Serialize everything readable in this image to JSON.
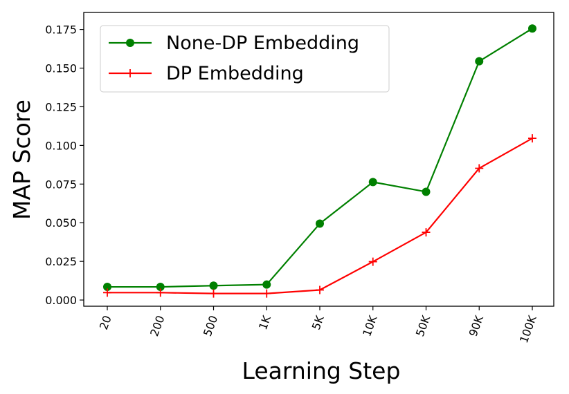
{
  "chart_data": {
    "type": "line",
    "categories": [
      "20",
      "200",
      "500",
      "1K",
      "5K",
      "10K",
      "50K",
      "90K",
      "100K"
    ],
    "series": [
      {
        "name": "None-DP Embedding",
        "color": "#008000",
        "marker": "circle",
        "values": [
          0.0085,
          0.0085,
          0.0093,
          0.01,
          0.0494,
          0.0763,
          0.07,
          0.1544,
          0.1756
        ]
      },
      {
        "name": "DP Embedding",
        "color": "#ff0000",
        "marker": "plus",
        "values": [
          0.0048,
          0.0048,
          0.0042,
          0.0042,
          0.0065,
          0.0248,
          0.0438,
          0.0852,
          0.1046
        ]
      }
    ],
    "xlabel": "Learning Step",
    "ylabel": "MAP Score",
    "ylim": [
      -0.004,
      0.186
    ],
    "yticks": [
      "0.000",
      "0.025",
      "0.050",
      "0.075",
      "0.100",
      "0.125",
      "0.150",
      "0.175"
    ],
    "ytick_values": [
      0,
      0.025,
      0.05,
      0.075,
      0.1,
      0.125,
      0.15,
      0.175
    ],
    "grid": false,
    "legend_position": "top-left"
  }
}
